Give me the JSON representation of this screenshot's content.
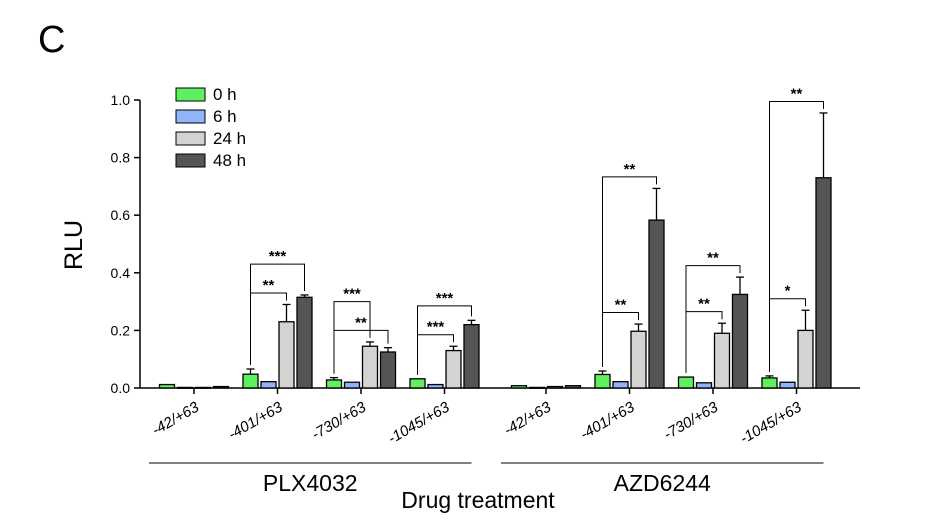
{
  "panel_label": "C",
  "chart_data": {
    "type": "bar",
    "ylabel": "RLU",
    "xlabel": "Drug treatment",
    "ylim": [
      0,
      1.0
    ],
    "yticks": [
      "0.0",
      "0.2",
      "0.4",
      "0.6",
      "0.8",
      "1.0"
    ],
    "legend_position": "top-left",
    "groups": [
      {
        "name": "PLX4032",
        "categories": [
          "-42/+63",
          "-401/+63",
          "-730/+63",
          "-1045/+63"
        ]
      },
      {
        "name": "AZD6244",
        "categories": [
          "-42/+63",
          "-401/+63",
          "-730/+63",
          "-1045/+63"
        ]
      }
    ],
    "series": [
      {
        "name": "0 h",
        "color": "#5ef05e",
        "values": [
          0.012,
          0.048,
          0.028,
          0.032,
          0.008,
          0.047,
          0.038,
          0.035
        ],
        "errors": [
          0.0,
          0.018,
          0.008,
          0.0,
          0.0,
          0.012,
          0.0,
          0.007
        ]
      },
      {
        "name": "6 h",
        "color": "#8fb4f8",
        "values": [
          0.002,
          0.022,
          0.02,
          0.012,
          0.002,
          0.022,
          0.018,
          0.02
        ],
        "errors": [
          0.0,
          0.0,
          0.0,
          0.0,
          0.0,
          0.0,
          0.0,
          0.0
        ]
      },
      {
        "name": "24 h",
        "color": "#d3d3d3",
        "values": [
          0.002,
          0.23,
          0.145,
          0.13,
          0.005,
          0.197,
          0.19,
          0.2
        ],
        "errors": [
          0.0,
          0.06,
          0.015,
          0.015,
          0.0,
          0.025,
          0.035,
          0.07
        ]
      },
      {
        "name": "48 h",
        "color": "#555555",
        "values": [
          0.005,
          0.315,
          0.125,
          0.22,
          0.008,
          0.583,
          0.325,
          0.73
        ],
        "errors": [
          0.0,
          0.008,
          0.015,
          0.015,
          0.0,
          0.11,
          0.06,
          0.225
        ]
      }
    ],
    "significance": [
      {
        "category_index": 1,
        "from_series": 0,
        "to_series": 2,
        "label": "**"
      },
      {
        "category_index": 1,
        "from_series": 0,
        "to_series": 3,
        "label": "***"
      },
      {
        "category_index": 2,
        "from_series": 0,
        "to_series": 2,
        "label": "***"
      },
      {
        "category_index": 2,
        "from_series": 0,
        "to_series": 3,
        "label": "**"
      },
      {
        "category_index": 3,
        "from_series": 0,
        "to_series": 2,
        "label": "***"
      },
      {
        "category_index": 3,
        "from_series": 0,
        "to_series": 3,
        "label": "***"
      },
      {
        "category_index": 5,
        "from_series": 0,
        "to_series": 2,
        "label": "**"
      },
      {
        "category_index": 5,
        "from_series": 0,
        "to_series": 3,
        "label": "**"
      },
      {
        "category_index": 6,
        "from_series": 0,
        "to_series": 2,
        "label": "**"
      },
      {
        "category_index": 6,
        "from_series": 0,
        "to_series": 3,
        "label": "**"
      },
      {
        "category_index": 7,
        "from_series": 0,
        "to_series": 2,
        "label": "*"
      },
      {
        "category_index": 7,
        "from_series": 0,
        "to_series": 3,
        "label": "**"
      }
    ]
  }
}
